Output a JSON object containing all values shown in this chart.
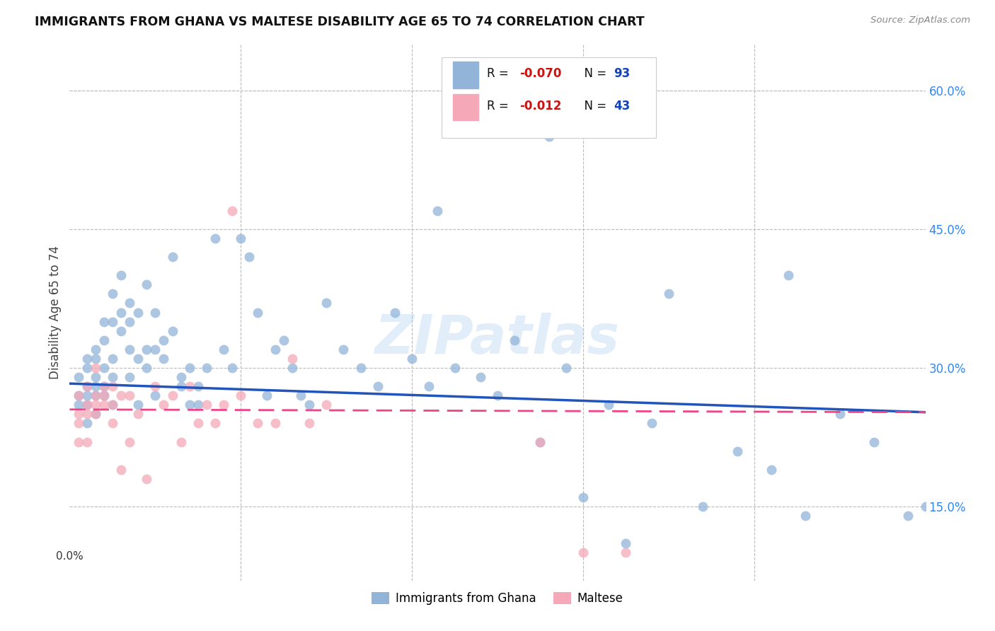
{
  "title": "IMMIGRANTS FROM GHANA VS MALTESE DISABILITY AGE 65 TO 74 CORRELATION CHART",
  "source": "Source: ZipAtlas.com",
  "ylabel": "Disability Age 65 to 74",
  "legend_label1": "Immigrants from Ghana",
  "legend_label2": "Maltese",
  "blue_color": "#92B4D9",
  "pink_color": "#F4A8B8",
  "blue_edge": "#92B4D9",
  "pink_edge": "#F4A8B8",
  "line_blue": "#2255BB",
  "line_pink": "#EE4488",
  "watermark": "ZIPatlas",
  "r1": "-0.070",
  "n1": "93",
  "r2": "-0.012",
  "n2": "43",
  "xlim": [
    0.0,
    0.1
  ],
  "ylim": [
    0.07,
    0.65
  ],
  "yticks": [
    0.15,
    0.3,
    0.45,
    0.6
  ],
  "ghana_x": [
    0.001,
    0.001,
    0.001,
    0.002,
    0.002,
    0.002,
    0.002,
    0.002,
    0.002,
    0.003,
    0.003,
    0.003,
    0.003,
    0.003,
    0.003,
    0.004,
    0.004,
    0.004,
    0.004,
    0.004,
    0.005,
    0.005,
    0.005,
    0.005,
    0.005,
    0.006,
    0.006,
    0.006,
    0.007,
    0.007,
    0.007,
    0.007,
    0.008,
    0.008,
    0.008,
    0.009,
    0.009,
    0.009,
    0.01,
    0.01,
    0.01,
    0.011,
    0.011,
    0.012,
    0.012,
    0.013,
    0.013,
    0.014,
    0.014,
    0.015,
    0.015,
    0.016,
    0.017,
    0.018,
    0.019,
    0.02,
    0.021,
    0.022,
    0.023,
    0.024,
    0.025,
    0.026,
    0.027,
    0.028,
    0.03,
    0.032,
    0.034,
    0.036,
    0.038,
    0.04,
    0.042,
    0.045,
    0.048,
    0.05,
    0.052,
    0.055,
    0.058,
    0.06,
    0.063,
    0.065,
    0.068,
    0.07,
    0.074,
    0.078,
    0.082,
    0.086,
    0.09,
    0.094,
    0.098,
    0.1,
    0.056,
    0.043,
    0.084
  ],
  "ghana_y": [
    0.27,
    0.29,
    0.26,
    0.27,
    0.3,
    0.24,
    0.28,
    0.26,
    0.31,
    0.28,
    0.25,
    0.32,
    0.29,
    0.27,
    0.31,
    0.3,
    0.35,
    0.28,
    0.33,
    0.27,
    0.26,
    0.38,
    0.31,
    0.29,
    0.35,
    0.34,
    0.4,
    0.36,
    0.37,
    0.32,
    0.29,
    0.35,
    0.26,
    0.31,
    0.36,
    0.32,
    0.39,
    0.3,
    0.36,
    0.32,
    0.27,
    0.33,
    0.31,
    0.42,
    0.34,
    0.29,
    0.28,
    0.26,
    0.3,
    0.28,
    0.26,
    0.3,
    0.44,
    0.32,
    0.3,
    0.44,
    0.42,
    0.36,
    0.27,
    0.32,
    0.33,
    0.3,
    0.27,
    0.26,
    0.37,
    0.32,
    0.3,
    0.28,
    0.36,
    0.31,
    0.28,
    0.3,
    0.29,
    0.27,
    0.33,
    0.22,
    0.3,
    0.16,
    0.26,
    0.11,
    0.24,
    0.38,
    0.15,
    0.21,
    0.19,
    0.14,
    0.25,
    0.22,
    0.14,
    0.15,
    0.55,
    0.47,
    0.4
  ],
  "maltese_x": [
    0.001,
    0.001,
    0.001,
    0.001,
    0.002,
    0.002,
    0.002,
    0.002,
    0.003,
    0.003,
    0.003,
    0.003,
    0.004,
    0.004,
    0.004,
    0.005,
    0.005,
    0.005,
    0.006,
    0.006,
    0.007,
    0.007,
    0.008,
    0.009,
    0.01,
    0.011,
    0.012,
    0.013,
    0.014,
    0.015,
    0.016,
    0.017,
    0.018,
    0.019,
    0.02,
    0.022,
    0.024,
    0.026,
    0.028,
    0.03,
    0.055,
    0.06,
    0.065
  ],
  "maltese_y": [
    0.25,
    0.24,
    0.27,
    0.22,
    0.26,
    0.25,
    0.22,
    0.28,
    0.26,
    0.25,
    0.27,
    0.3,
    0.27,
    0.28,
    0.26,
    0.28,
    0.26,
    0.24,
    0.19,
    0.27,
    0.27,
    0.22,
    0.25,
    0.18,
    0.28,
    0.26,
    0.27,
    0.22,
    0.28,
    0.24,
    0.26,
    0.24,
    0.26,
    0.47,
    0.27,
    0.24,
    0.24,
    0.31,
    0.24,
    0.26,
    0.22,
    0.1,
    0.1
  ]
}
